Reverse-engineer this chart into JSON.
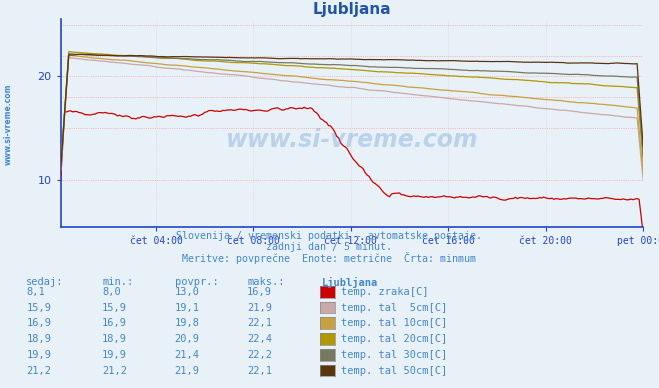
{
  "title": "Ljubljana",
  "title_color": "#2255aa",
  "bg_color": "#e8f0f8",
  "plot_bg_color": "#e8f0f8",
  "xlabel_ticks": [
    "čet 04:00",
    "čet 08:00",
    "čet 12:00",
    "čet 16:00",
    "čet 20:00",
    "pet 00:00"
  ],
  "ytick_labels": [
    "10",
    "20"
  ],
  "ytick_vals": [
    10,
    20
  ],
  "ylim": [
    5.5,
    25.5
  ],
  "xlim": [
    0,
    287
  ],
  "subtitle1": "Slovenija / vremenski podatki - avtomatske postaje.",
  "subtitle2": "zadnji dan / 5 minut.",
  "subtitle3": "Meritve: povprečne  Enote: metrične  Črta: minmum",
  "subtitle_color": "#4488cc",
  "watermark": "www.si-vreme.com",
  "series_colors": [
    "#cc0000",
    "#c8a8a8",
    "#c8a040",
    "#b09800",
    "#787860",
    "#5a3510"
  ],
  "legend_labels": [
    "temp. zraka[C]",
    "temp. tal  5cm[C]",
    "temp. tal 10cm[C]",
    "temp. tal 20cm[C]",
    "temp. tal 30cm[C]",
    "temp. tal 50cm[C]"
  ],
  "table_headers": [
    "sedaj:",
    "min.:",
    "povpr.:",
    "maks.:",
    "Ljubljana"
  ],
  "table_data": [
    [
      8.1,
      8.0,
      13.0,
      16.9
    ],
    [
      15.9,
      15.9,
      19.1,
      21.9
    ],
    [
      16.9,
      16.9,
      19.8,
      22.1
    ],
    [
      18.9,
      18.9,
      20.9,
      22.4
    ],
    [
      19.9,
      19.9,
      21.4,
      22.2
    ],
    [
      21.2,
      21.2,
      21.9,
      22.1
    ]
  ],
  "axis_color": "#2244cc",
  "hgrid_color": "#ff8888",
  "vgrid_color": "#ddcccc",
  "hgrid_vals": [
    10,
    15,
    18,
    20,
    22,
    25
  ],
  "tick_x_idx": [
    47,
    95,
    143,
    191,
    239,
    287
  ],
  "left_margin_label": "www.si-vreme.com"
}
